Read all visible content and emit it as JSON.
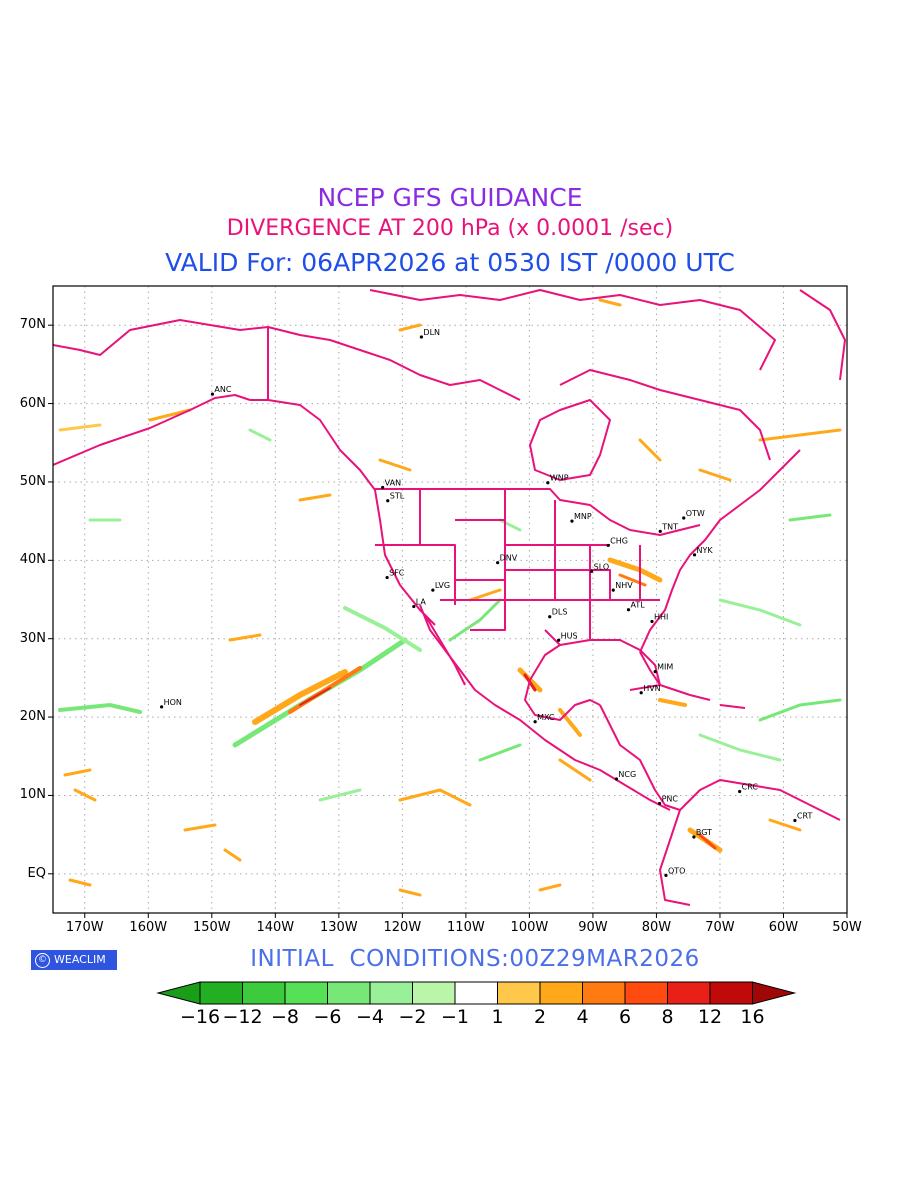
{
  "titles": {
    "line1": "NCEP GFS GUIDANCE",
    "line2": "DIVERGENCE AT 200 hPa (x 0.0001 /sec)",
    "line3": "VALID For: 06APR2026 at 0530 IST /0000 UTC"
  },
  "map": {
    "lat_labels": [
      "70N",
      "60N",
      "50N",
      "40N",
      "30N",
      "20N",
      "10N",
      "EQ"
    ],
    "lon_labels": [
      "170W",
      "160W",
      "150W",
      "140W",
      "130W",
      "120W",
      "110W",
      "100W",
      "90W",
      "80W",
      "70W",
      "60W",
      "50W"
    ],
    "extent": {
      "lon": [
        -175,
        -50
      ],
      "lat": [
        -5,
        75
      ]
    },
    "boundary_color": "#e8127a",
    "cities": [
      {
        "code": "ANC",
        "lon": -149.9,
        "lat": 61.2
      },
      {
        "code": "DLN",
        "lon": -117.0,
        "lat": 68.5
      },
      {
        "code": "WNP",
        "lon": -97.1,
        "lat": 49.9
      },
      {
        "code": "VAN",
        "lon": -123.1,
        "lat": 49.3
      },
      {
        "code": "STL",
        "lon": -122.3,
        "lat": 47.6
      },
      {
        "code": "MNP",
        "lon": -93.3,
        "lat": 45.0
      },
      {
        "code": "TNT",
        "lon": -79.4,
        "lat": 43.7
      },
      {
        "code": "OTW",
        "lon": -75.7,
        "lat": 45.4
      },
      {
        "code": "CHG",
        "lon": -87.6,
        "lat": 41.9
      },
      {
        "code": "NYK",
        "lon": -74.0,
        "lat": 40.7
      },
      {
        "code": "DNV",
        "lon": -105.0,
        "lat": 39.7
      },
      {
        "code": "SLO",
        "lon": -90.2,
        "lat": 38.6
      },
      {
        "code": "SFC",
        "lon": -122.4,
        "lat": 37.8
      },
      {
        "code": "LVG",
        "lon": -115.2,
        "lat": 36.2
      },
      {
        "code": "NHV",
        "lon": -86.8,
        "lat": 36.2
      },
      {
        "code": "LA",
        "lon": -118.2,
        "lat": 34.1
      },
      {
        "code": "ATL",
        "lon": -84.4,
        "lat": 33.7
      },
      {
        "code": "DLS",
        "lon": -96.8,
        "lat": 32.8
      },
      {
        "code": "HHI",
        "lon": -80.7,
        "lat": 32.2
      },
      {
        "code": "HUS",
        "lon": -95.4,
        "lat": 29.8
      },
      {
        "code": "MIM",
        "lon": -80.2,
        "lat": 25.8
      },
      {
        "code": "HVN",
        "lon": -82.4,
        "lat": 23.1
      },
      {
        "code": "HON",
        "lon": -157.9,
        "lat": 21.3
      },
      {
        "code": "MXC",
        "lon": -99.1,
        "lat": 19.4
      },
      {
        "code": "NCG",
        "lon": -86.3,
        "lat": 12.1
      },
      {
        "code": "CRC",
        "lon": -66.9,
        "lat": 10.5
      },
      {
        "code": "PNC",
        "lon": -79.5,
        "lat": 8.98
      },
      {
        "code": "CRT",
        "lon": -58.2,
        "lat": 6.8
      },
      {
        "code": "BGT",
        "lon": -74.1,
        "lat": 4.7
      },
      {
        "code": "QTO",
        "lon": -78.5,
        "lat": -0.2
      }
    ]
  },
  "branding": {
    "logo_text": "WEACLIM"
  },
  "initial_conditions": "INITIAL  CONDITIONS:00Z29MAR2026",
  "colorbar": {
    "labels": [
      "-16",
      "-12",
      "-8",
      "-6",
      "-4",
      "-2",
      "-1",
      "1",
      "2",
      "4",
      "6",
      "8",
      "12",
      "16"
    ],
    "colors": [
      "#1a9e1a",
      "#22b022",
      "#3ccb3c",
      "#55e055",
      "#77e877",
      "#99f099",
      "#bbf5aa",
      "#ffffff",
      "#ffc84a",
      "#ffa81a",
      "#ff7a10",
      "#ff4a10",
      "#e82018",
      "#c00a0a",
      "#a00808"
    ]
  }
}
